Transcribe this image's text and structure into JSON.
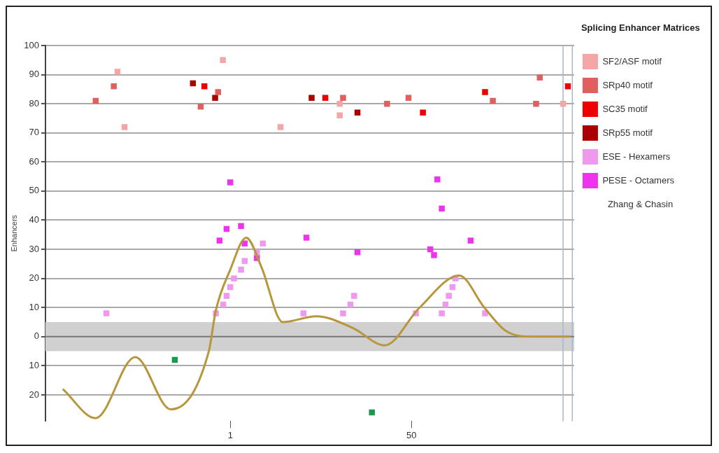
{
  "chart_data": {
    "type": "scatter",
    "ylabel": "Enhancers",
    "legend_title": "Splicing Enhancer Matrices",
    "legend": "right",
    "grid": "y",
    "marker": "square",
    "xlim": [
      -49,
      94
    ],
    "xticks": [
      1,
      50
    ],
    "ylim": [
      -29,
      100
    ],
    "yticks": [
      {
        "value": -20,
        "label": "20"
      },
      {
        "value": -10,
        "label": "10"
      },
      0,
      10,
      20,
      30,
      40,
      50,
      60,
      70,
      80,
      90,
      100
    ],
    "bands": [
      {
        "axis": "y",
        "from": -5,
        "to": 5,
        "color": "#d0d0d0"
      }
    ],
    "ref_lines": [
      {
        "axis": "x",
        "value": 91,
        "color": "#aab4d4"
      },
      {
        "axis": "x",
        "value": 93.5,
        "color": "#aab4d4"
      }
    ],
    "annotations": [
      "Zhang & Chasin"
    ],
    "series": [
      {
        "name": "SF2/ASF motif",
        "color": "#f4a6a6",
        "x": [
          -29.5,
          -27.6,
          -1,
          14.6,
          30.6,
          30.6,
          91
        ],
        "values": [
          91,
          72,
          95,
          72,
          80,
          76,
          80
        ]
      },
      {
        "name": "SRp40 motif",
        "color": "#e06060",
        "x": [
          -35.4,
          -30.5,
          -7,
          -2.3,
          31.5,
          43.4,
          49.2,
          72,
          84.7,
          83.7
        ],
        "values": [
          81,
          86,
          79,
          84,
          82,
          80,
          82,
          81,
          89,
          80
        ]
      },
      {
        "name": "SC35 motif",
        "color": "#ee0000",
        "x": [
          -6,
          26.7,
          53.1,
          69.9,
          92.3
        ],
        "values": [
          86,
          82,
          77,
          84,
          86
        ]
      },
      {
        "name": "SRp55 motif",
        "color": "#aa0000",
        "x": [
          -9.1,
          -3.1,
          23,
          35.4
        ],
        "values": [
          87,
          82,
          82,
          77
        ]
      },
      {
        "name": "ESE - Hexamers",
        "color": "#ee99ee",
        "x": [
          -32.5,
          -2.9,
          -0.9,
          0,
          1,
          2,
          3.9,
          4.9,
          9.8,
          8.2,
          20.8,
          31.5,
          33.5,
          34.5,
          51.2,
          58.2,
          59.2,
          60.1,
          61.1,
          61.9,
          69.9
        ],
        "values": [
          8,
          8,
          11,
          14,
          17,
          20,
          23,
          26,
          32,
          29,
          8,
          8,
          11,
          14,
          8,
          8,
          11,
          14,
          17,
          20,
          8
        ]
      },
      {
        "name": "PESE - Octamers",
        "color": "#ee33ee",
        "x": [
          1,
          0,
          3.9,
          -1.9,
          4.9,
          8.2,
          21.6,
          35.4,
          57,
          58.2,
          55.1,
          56.1,
          66
        ],
        "values": [
          53,
          37,
          38,
          33,
          32,
          27,
          34,
          29,
          54,
          44,
          30,
          28,
          33
        ]
      },
      {
        "color": "#1a9a50",
        "x": [
          -14,
          39.3
        ],
        "values": [
          -8,
          -26
        ]
      },
      {
        "type": "line",
        "marker": "none",
        "color": "#b8963c",
        "x": [
          -44.3,
          -35.4,
          -24.7,
          -15.1,
          -4.8,
          -2.9,
          1,
          5.3,
          9.4,
          15.2,
          24.3,
          34.1,
          42.8,
          52.2,
          62.9,
          69.7,
          75.5,
          82.7,
          93
        ],
        "values": [
          -18,
          -28,
          -7,
          -25,
          -5,
          9,
          23,
          34,
          24,
          5,
          7,
          3,
          -3,
          10,
          21,
          10,
          2,
          0,
          0
        ]
      }
    ]
  }
}
